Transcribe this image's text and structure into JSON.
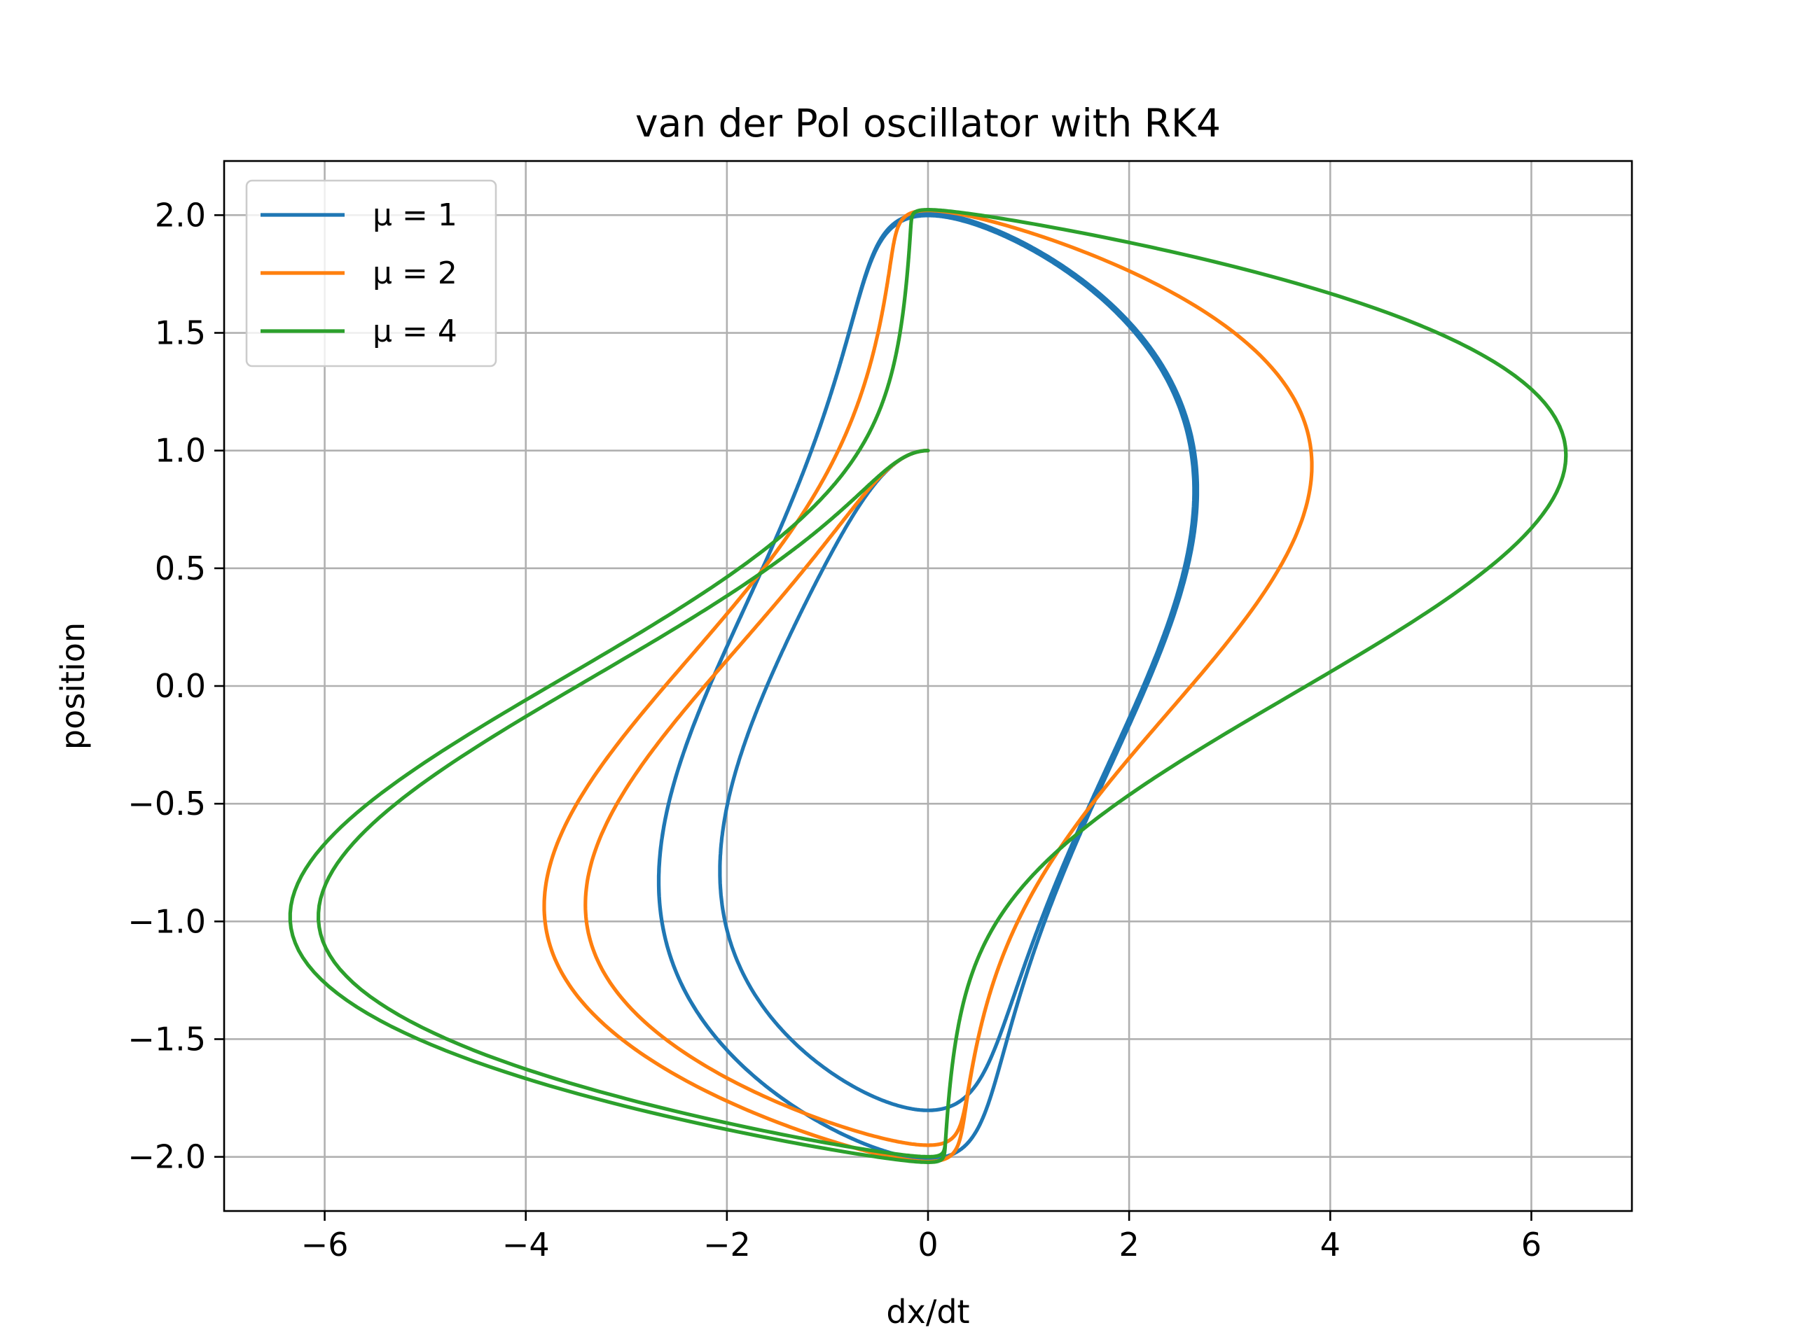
{
  "chart_data": {
    "type": "line",
    "title": "van der Pol oscillator with RK4",
    "xlabel": "dx/dt",
    "ylabel": "position",
    "xlim": [
      -7.0,
      7.0
    ],
    "ylim": [
      -2.23,
      2.23
    ],
    "xticks": [
      -6,
      -4,
      -2,
      0,
      2,
      4,
      6
    ],
    "yticks": [
      -2.0,
      -1.5,
      -1.0,
      -0.5,
      0.0,
      0.5,
      1.0,
      1.5,
      2.0
    ],
    "xtick_labels": [
      "−6",
      "−4",
      "−2",
      "0",
      "2",
      "4",
      "6"
    ],
    "ytick_labels": [
      "−2.0",
      "−1.5",
      "−1.0",
      "−0.5",
      "0.0",
      "0.5",
      "1.0",
      "1.5",
      "2.0"
    ],
    "grid": true,
    "legend_position": "upper-left",
    "series": [
      {
        "name": "μ = 1",
        "color": "#1f77b4",
        "mu": 1
      },
      {
        "name": "μ = 2",
        "color": "#ff7f0e",
        "mu": 2
      },
      {
        "name": "μ = 4",
        "color": "#2ca02c",
        "mu": 4
      }
    ],
    "initial_condition": {
      "position": 1.0,
      "velocity": 0.0
    }
  }
}
